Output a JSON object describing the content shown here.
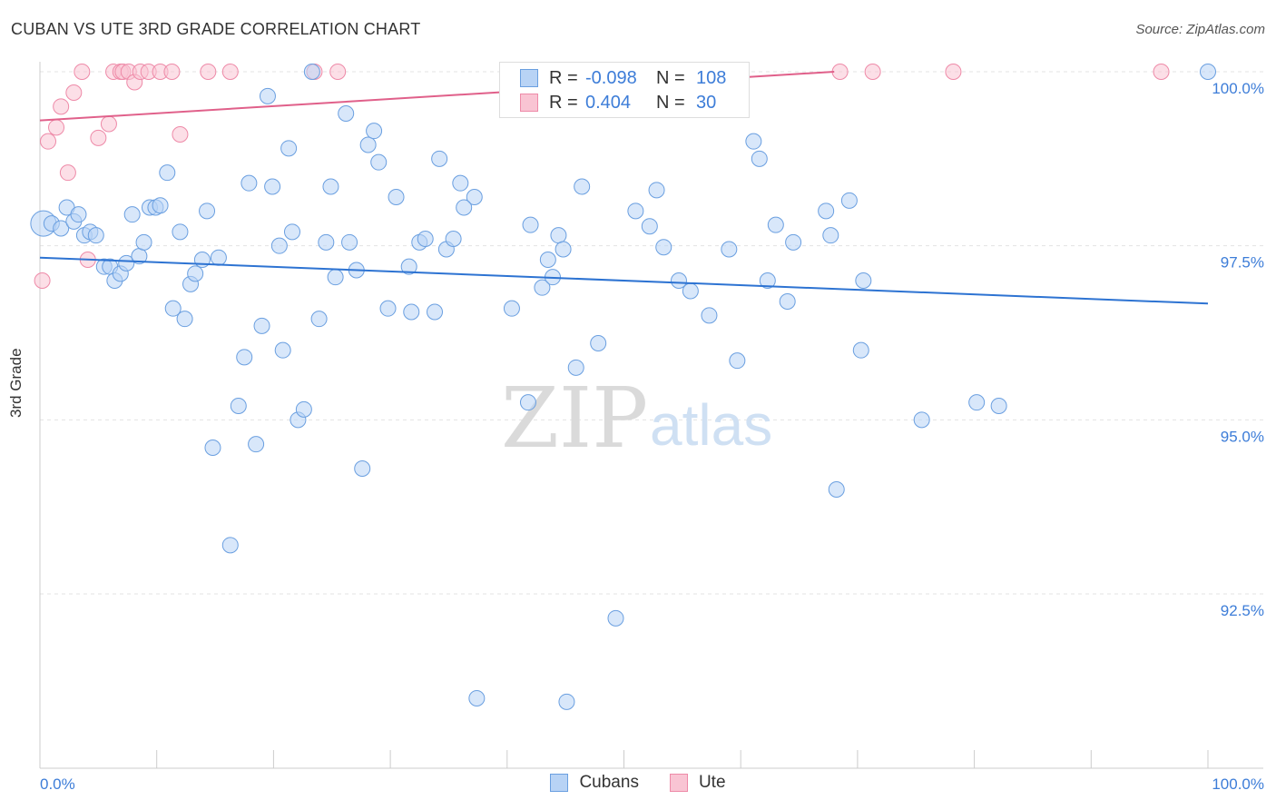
{
  "header": {
    "title": "CUBAN VS UTE 3RD GRADE CORRELATION CHART",
    "source": "Source: ZipAtlas.com"
  },
  "watermark": {
    "zip": "ZIP",
    "atlas": "atlas"
  },
  "legend_top": {
    "rows": [
      {
        "r_label": "R =",
        "r_value": "-0.098",
        "n_label": "N =",
        "n_value": "108"
      },
      {
        "r_label": "R =",
        "r_value": "0.404",
        "n_label": "N =",
        "n_value": "30"
      }
    ]
  },
  "colors": {
    "cubans_fill": "#b8d3f5",
    "cubans_stroke": "#6a9fe0",
    "cubans_line": "#2d73d2",
    "ute_fill": "#f9c4d3",
    "ute_stroke": "#ee8aa8",
    "ute_line": "#e0608a",
    "tick_label": "#3d7dd8",
    "grid": "#e3e3e3"
  },
  "chart_data": {
    "type": "scatter",
    "title": "CUBAN VS UTE 3RD GRADE CORRELATION CHART",
    "xlabel": "",
    "ylabel": "3rd Grade",
    "xlim": [
      0,
      100
    ],
    "ylim": [
      90.0,
      100.4
    ],
    "x_tick_labels": [
      "0.0%",
      "100.0%"
    ],
    "y_ticks": [
      {
        "value": 100.0,
        "label": "100.0%"
      },
      {
        "value": 97.5,
        "label": "97.5%"
      },
      {
        "value": 95.0,
        "label": "95.0%"
      },
      {
        "value": 92.5,
        "label": "92.5%"
      }
    ],
    "legend_position": "bottom-center",
    "series": [
      {
        "name": "Cubans",
        "trend": {
          "x": [
            0,
            100
          ],
          "y": [
            97.33,
            96.67
          ]
        },
        "points": [
          [
            0.3,
            97.82
          ],
          [
            1.0,
            97.82
          ],
          [
            1.8,
            97.75
          ],
          [
            2.3,
            98.05
          ],
          [
            2.9,
            97.85
          ],
          [
            3.3,
            97.95
          ],
          [
            3.8,
            97.65
          ],
          [
            4.3,
            97.7
          ],
          [
            4.8,
            97.65
          ],
          [
            5.5,
            97.2
          ],
          [
            6.0,
            97.2
          ],
          [
            6.4,
            97.0
          ],
          [
            6.9,
            97.1
          ],
          [
            7.4,
            97.25
          ],
          [
            7.9,
            97.95
          ],
          [
            8.5,
            97.35
          ],
          [
            8.9,
            97.55
          ],
          [
            9.4,
            98.05
          ],
          [
            9.9,
            98.05
          ],
          [
            10.3,
            98.08
          ],
          [
            10.9,
            98.55
          ],
          [
            11.4,
            96.6
          ],
          [
            12.0,
            97.7
          ],
          [
            12.4,
            96.45
          ],
          [
            12.9,
            96.95
          ],
          [
            13.3,
            97.1
          ],
          [
            13.9,
            97.3
          ],
          [
            14.3,
            98.0
          ],
          [
            15.3,
            97.33
          ],
          [
            17.0,
            95.2
          ],
          [
            17.5,
            95.9
          ],
          [
            17.9,
            98.4
          ],
          [
            18.5,
            94.65
          ],
          [
            19.0,
            96.35
          ],
          [
            19.5,
            99.65
          ],
          [
            19.9,
            98.35
          ],
          [
            20.5,
            97.5
          ],
          [
            21.3,
            98.9
          ],
          [
            21.6,
            97.7
          ],
          [
            22.1,
            95.0
          ],
          [
            22.6,
            95.15
          ],
          [
            23.3,
            100.0
          ],
          [
            23.9,
            96.45
          ],
          [
            24.5,
            97.55
          ],
          [
            24.9,
            98.35
          ],
          [
            25.3,
            97.05
          ],
          [
            26.5,
            97.55
          ],
          [
            27.1,
            97.15
          ],
          [
            27.6,
            94.3
          ],
          [
            28.1,
            98.95
          ],
          [
            28.6,
            99.15
          ],
          [
            29.0,
            98.7
          ],
          [
            29.8,
            96.6
          ],
          [
            30.5,
            98.2
          ],
          [
            31.6,
            97.2
          ],
          [
            31.8,
            96.55
          ],
          [
            32.5,
            97.55
          ],
          [
            33.0,
            97.6
          ],
          [
            33.8,
            96.55
          ],
          [
            34.2,
            98.75
          ],
          [
            34.8,
            97.45
          ],
          [
            35.4,
            97.6
          ],
          [
            36.0,
            98.4
          ],
          [
            37.2,
            98.2
          ],
          [
            40.4,
            96.6
          ],
          [
            42.0,
            97.8
          ],
          [
            43.0,
            96.9
          ],
          [
            43.5,
            97.3
          ],
          [
            43.9,
            97.05
          ],
          [
            44.4,
            97.65
          ],
          [
            44.8,
            97.45
          ],
          [
            45.9,
            95.75
          ],
          [
            46.4,
            98.35
          ],
          [
            47.8,
            96.1
          ],
          [
            49.3,
            92.15
          ],
          [
            51.0,
            98.0
          ],
          [
            52.2,
            97.78
          ],
          [
            52.8,
            98.3
          ],
          [
            53.4,
            97.48
          ],
          [
            54.7,
            97.0
          ],
          [
            55.7,
            96.85
          ],
          [
            57.3,
            96.5
          ],
          [
            59.0,
            97.45
          ],
          [
            59.7,
            95.85
          ],
          [
            61.1,
            99.0
          ],
          [
            61.6,
            98.75
          ],
          [
            62.3,
            97.0
          ],
          [
            63.0,
            97.8
          ],
          [
            64.0,
            96.7
          ],
          [
            64.5,
            97.55
          ],
          [
            67.3,
            98.0
          ],
          [
            67.7,
            97.65
          ],
          [
            68.2,
            94.0
          ],
          [
            69.3,
            98.15
          ],
          [
            70.3,
            96.0
          ],
          [
            70.5,
            97.0
          ],
          [
            75.5,
            95.0
          ],
          [
            80.2,
            95.25
          ],
          [
            82.1,
            95.2
          ],
          [
            100.0,
            100.0
          ],
          [
            16.3,
            93.2
          ],
          [
            37.4,
            91.0
          ],
          [
            20.8,
            96.0
          ],
          [
            36.3,
            98.05
          ],
          [
            41.8,
            95.25
          ],
          [
            26.2,
            99.4
          ],
          [
            14.8,
            94.6
          ],
          [
            45.1,
            90.95
          ]
        ]
      },
      {
        "name": "Ute",
        "trend": {
          "x": [
            0,
            68
          ],
          "y": [
            99.3,
            100.0
          ]
        },
        "points": [
          [
            0.2,
            97.0
          ],
          [
            0.7,
            99.0
          ],
          [
            1.4,
            99.2
          ],
          [
            1.8,
            99.5
          ],
          [
            2.4,
            98.55
          ],
          [
            2.9,
            99.7
          ],
          [
            3.6,
            100.0
          ],
          [
            4.1,
            97.3
          ],
          [
            5.0,
            99.05
          ],
          [
            5.9,
            99.25
          ],
          [
            6.3,
            100.0
          ],
          [
            6.9,
            100.0
          ],
          [
            7.1,
            100.0
          ],
          [
            7.6,
            100.0
          ],
          [
            8.1,
            99.85
          ],
          [
            8.6,
            100.0
          ],
          [
            9.3,
            100.0
          ],
          [
            10.3,
            100.0
          ],
          [
            11.3,
            100.0
          ],
          [
            12.0,
            99.1
          ],
          [
            14.4,
            100.0
          ],
          [
            16.3,
            100.0
          ],
          [
            23.5,
            100.0
          ],
          [
            25.5,
            100.0
          ],
          [
            44.9,
            100.0
          ],
          [
            55.3,
            100.0
          ],
          [
            68.5,
            100.0
          ],
          [
            71.3,
            100.0
          ],
          [
            78.2,
            100.0
          ],
          [
            96.0,
            100.0
          ]
        ]
      }
    ]
  }
}
